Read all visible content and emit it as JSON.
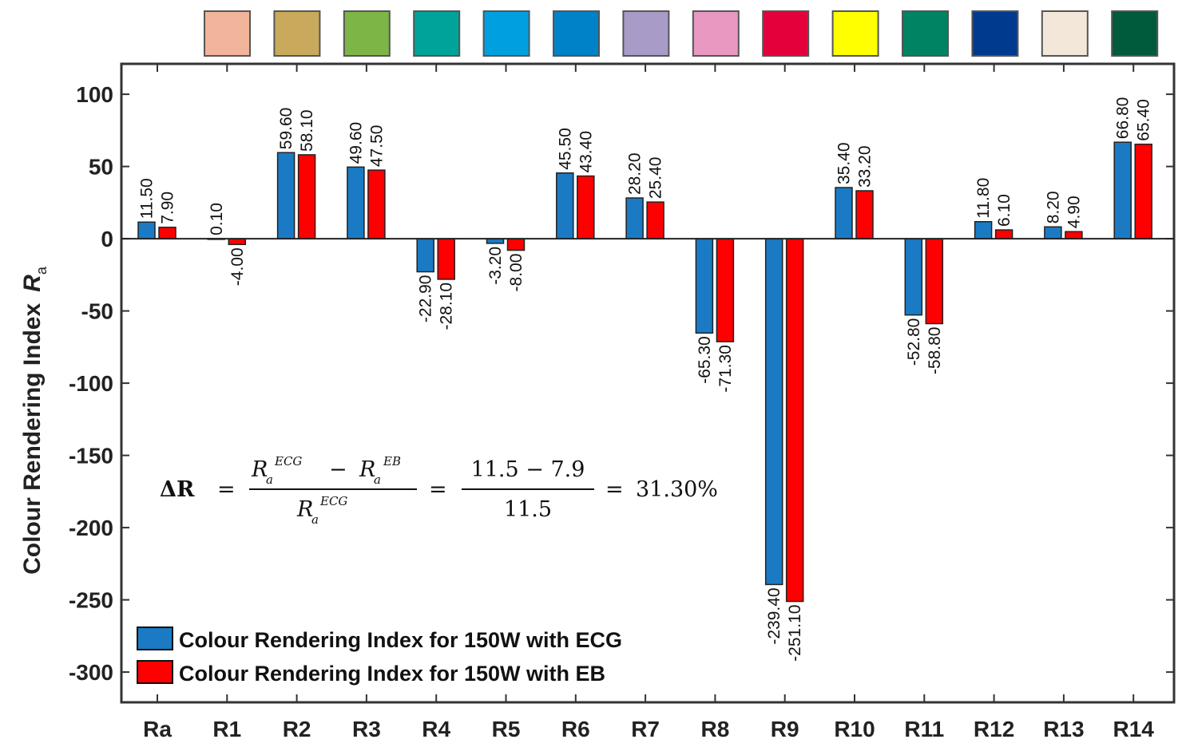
{
  "chart_data": {
    "type": "bar",
    "ylabel": "Colour Rendering Index",
    "ylabel_symbol": "R",
    "ylabel_subscript": "a",
    "ylim": [
      -320,
      120
    ],
    "yticks": [
      100,
      50,
      0,
      -50,
      -100,
      -150,
      -200,
      -250,
      -300
    ],
    "categories": [
      "Ra",
      "R1",
      "R2",
      "R3",
      "R4",
      "R5",
      "R6",
      "R7",
      "R8",
      "R9",
      "R10",
      "R11",
      "R12",
      "R13",
      "R14"
    ],
    "swatch_colors": [
      "#f2b49b",
      "#c9a95b",
      "#7db646",
      "#00a39a",
      "#00a0df",
      "#0082c8",
      "#a99bc8",
      "#e898c1",
      "#e4003a",
      "#ffff00",
      "#008363",
      "#003a8f",
      "#f3e7d9",
      "#005a3c"
    ],
    "series": [
      {
        "name": "Colour Rendering Index for 150W with ECG",
        "color": "#1a7bc4",
        "values": [
          11.5,
          0.1,
          59.6,
          49.6,
          -22.9,
          -3.2,
          45.5,
          28.2,
          -65.3,
          -239.4,
          35.4,
          -52.8,
          11.8,
          8.2,
          66.8
        ],
        "labels": [
          "11.50",
          "0.10",
          "59.60",
          "49.60",
          "-22.90",
          "-3.20",
          "45.50",
          "28.20",
          "-65.30",
          "-239.40",
          "35.40",
          "-52.80",
          "11.80",
          "8.20",
          "66.80"
        ]
      },
      {
        "name": "Colour Rendering Index for 150W with EB",
        "color": "#ff0000",
        "values": [
          7.9,
          -4.0,
          58.1,
          47.5,
          -28.1,
          -8.0,
          43.4,
          25.4,
          -71.3,
          -251.1,
          33.2,
          -58.8,
          6.1,
          4.9,
          65.4
        ],
        "labels": [
          "7.90",
          "-4.00",
          "58.10",
          "47.50",
          "-28.10",
          "-8.00",
          "43.40",
          "25.40",
          "-71.30",
          "-251.10",
          "33.20",
          "-58.80",
          "6.10",
          "4.90",
          "65.40"
        ]
      }
    ],
    "annotation": {
      "lhs": "ΔR",
      "numerator_left": "R",
      "numerator_left_sub": "a",
      "numerator_left_sup": "ECG",
      "numerator_op": "−",
      "numerator_right": "R",
      "numerator_right_sub": "a",
      "numerator_right_sup": "EB",
      "denominator": "R",
      "denominator_sub": "a",
      "denominator_sup": "ECG",
      "num2": "11.5 − 7.9",
      "den2": "11.5",
      "result": "31.30%"
    },
    "legend_position": "bottom-left",
    "grid": false
  }
}
